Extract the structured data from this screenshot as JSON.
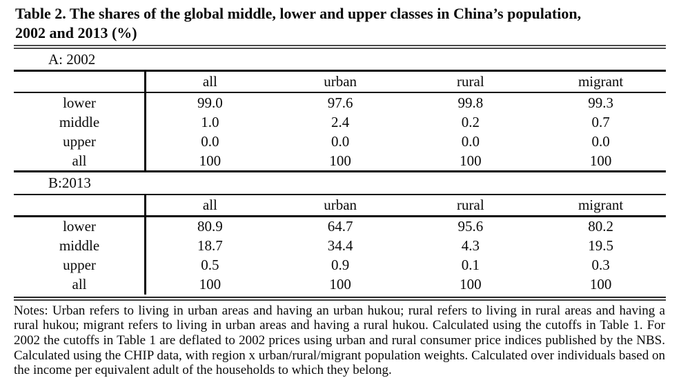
{
  "title": {
    "full": "Table 2. The shares of the global middle, lower and upper classes in China’s population, 2002 and 2013 (%)",
    "lines": [
      "Table 2. The shares of the global middle, lower and upper classes in China’s population,",
      "2002 and 2013 (%)"
    ]
  },
  "panels": [
    {
      "label": "A: 2002",
      "columns": [
        "",
        "all",
        "urban",
        "rural",
        "migrant"
      ],
      "rows": [
        [
          "lower",
          "99.0",
          "97.6",
          "99.8",
          "99.3"
        ],
        [
          "middle",
          "1.0",
          "2.4",
          "0.2",
          "0.7"
        ],
        [
          "upper",
          "0.0",
          "0.0",
          "0.0",
          "0.0"
        ],
        [
          "all",
          "100",
          "100",
          "100",
          "100"
        ]
      ]
    },
    {
      "label": "B:2013",
      "columns": [
        "",
        "all",
        "urban",
        "rural",
        "migrant"
      ],
      "rows": [
        [
          "lower",
          "80.9",
          "64.7",
          "95.6",
          "80.2"
        ],
        [
          "middle",
          "18.7",
          "34.4",
          "4.3",
          "19.5"
        ],
        [
          "upper",
          "0.5",
          "0.9",
          "0.1",
          "0.3"
        ],
        [
          "all",
          "100",
          "100",
          "100",
          "100"
        ]
      ]
    }
  ],
  "notes": "Notes: Urban refers to living in urban areas and having an urban hukou; rural refers to living in rural areas and having a rural hukou; migrant refers to living in urban areas and having a rural hukou. Calculated using the cutoffs in Table 1. For 2002 the cutoffs in Table 1 are deflated to 2002 prices using urban and rural consumer price indices published by the NBS. Calculated using the CHIP data, with region x urban/rural/migrant population weights. Calculated over individuals based on the income per equivalent adult of the households to which they belong."
}
